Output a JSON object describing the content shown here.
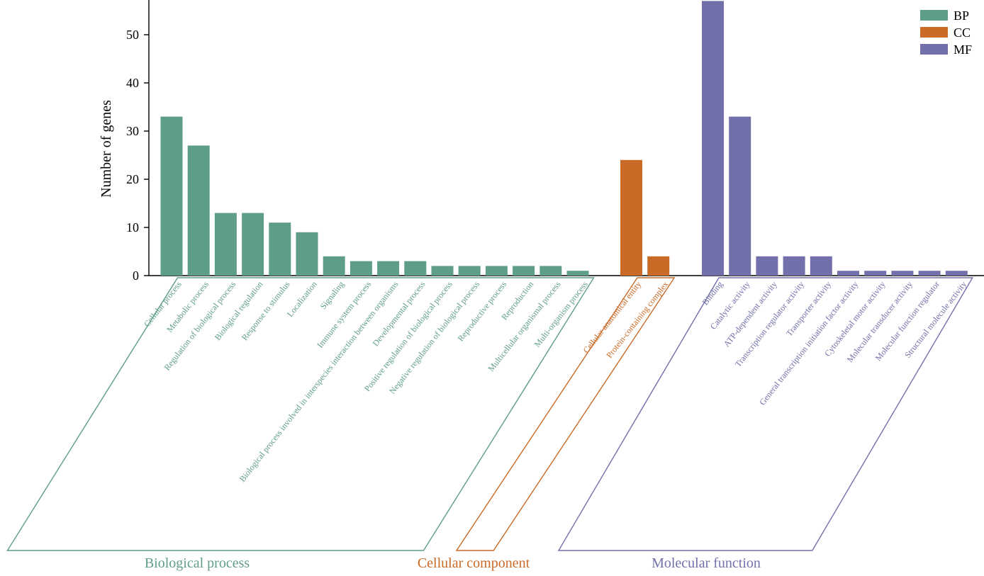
{
  "chart_data": {
    "type": "bar",
    "title": "",
    "xlabel": "",
    "ylabel": "Number of genes",
    "ylim": [
      0,
      57
    ],
    "yticks": [
      0,
      10,
      20,
      30,
      40,
      50
    ],
    "grid": false,
    "legend_placement": "top-right",
    "colors": {
      "BP": "#5f9e86",
      "CC": "#c96a27",
      "MF": "#7270aa"
    },
    "legend": [
      {
        "key": "BP",
        "label": "BP"
      },
      {
        "key": "CC",
        "label": "CC"
      },
      {
        "key": "MF",
        "label": "MF"
      }
    ],
    "groups": [
      {
        "key": "BP",
        "name": "Biological process",
        "categories": [
          "Cellular process",
          "Metabolic process",
          "Regulation of biological process",
          "Biological regulation",
          "Response to stimulus",
          "Localization",
          "Signaling",
          "Immune system process",
          "Biological process involved in interspecies interaction between organisms",
          "Developmental process",
          "Positive regulation of biological process",
          "Negative regulation of biological process",
          "Reproductive process",
          "Reproduction",
          "Multicellular organismal process",
          "Multi-organism process"
        ],
        "values": [
          33,
          27,
          13,
          13,
          11,
          9,
          4,
          3,
          3,
          3,
          2,
          2,
          2,
          2,
          2,
          1
        ]
      },
      {
        "key": "CC",
        "name": "Cellular component",
        "categories": [
          "Cellular anatomical entity",
          "Protein-containing complex"
        ],
        "values": [
          24,
          4
        ]
      },
      {
        "key": "MF",
        "name": "Molecular function",
        "categories": [
          "Binding",
          "Catalytic activity",
          "ATP-dependent activity",
          "Transcription regulator activity",
          "Transporter activity",
          "General transcription initiation factor activity",
          "Cytoskeletal motor activity",
          "Molecular transducer activity",
          "Molecular function regulator",
          "Structural molecule activity"
        ],
        "values": [
          57,
          33,
          4,
          4,
          4,
          1,
          1,
          1,
          1,
          1
        ]
      }
    ]
  }
}
